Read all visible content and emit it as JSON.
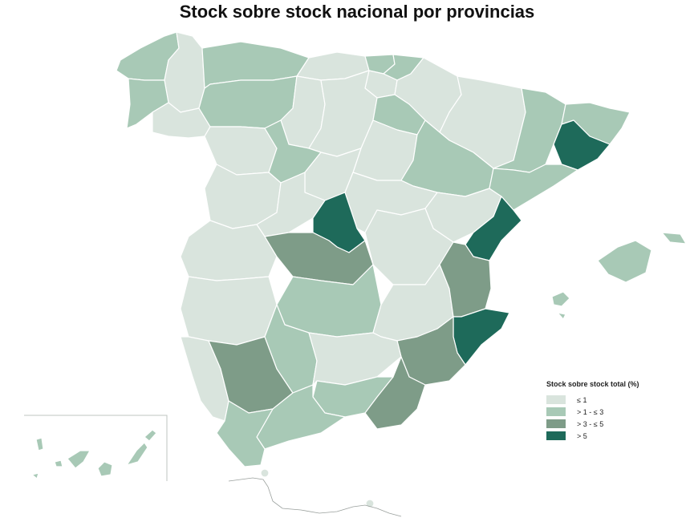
{
  "title": "Stock sobre stock nacional por provincias",
  "legend": {
    "title": "Stock sobre stock total (%)",
    "items": [
      {
        "label": "≤ 1",
        "color": "#d9e4dd"
      },
      {
        "label": "> 1 - ≤ 3",
        "color": "#a8c9b6"
      },
      {
        "label": "> 3 - ≤ 5",
        "color": "#7e9c88"
      },
      {
        "label": "> 5",
        "color": "#1e6a5a"
      }
    ]
  },
  "colors": {
    "le1": "#d9e4dd",
    "gt1_le3": "#a8c9b6",
    "gt3_le5": "#7e9c88",
    "gt5": "#1e6a5a"
  }
}
